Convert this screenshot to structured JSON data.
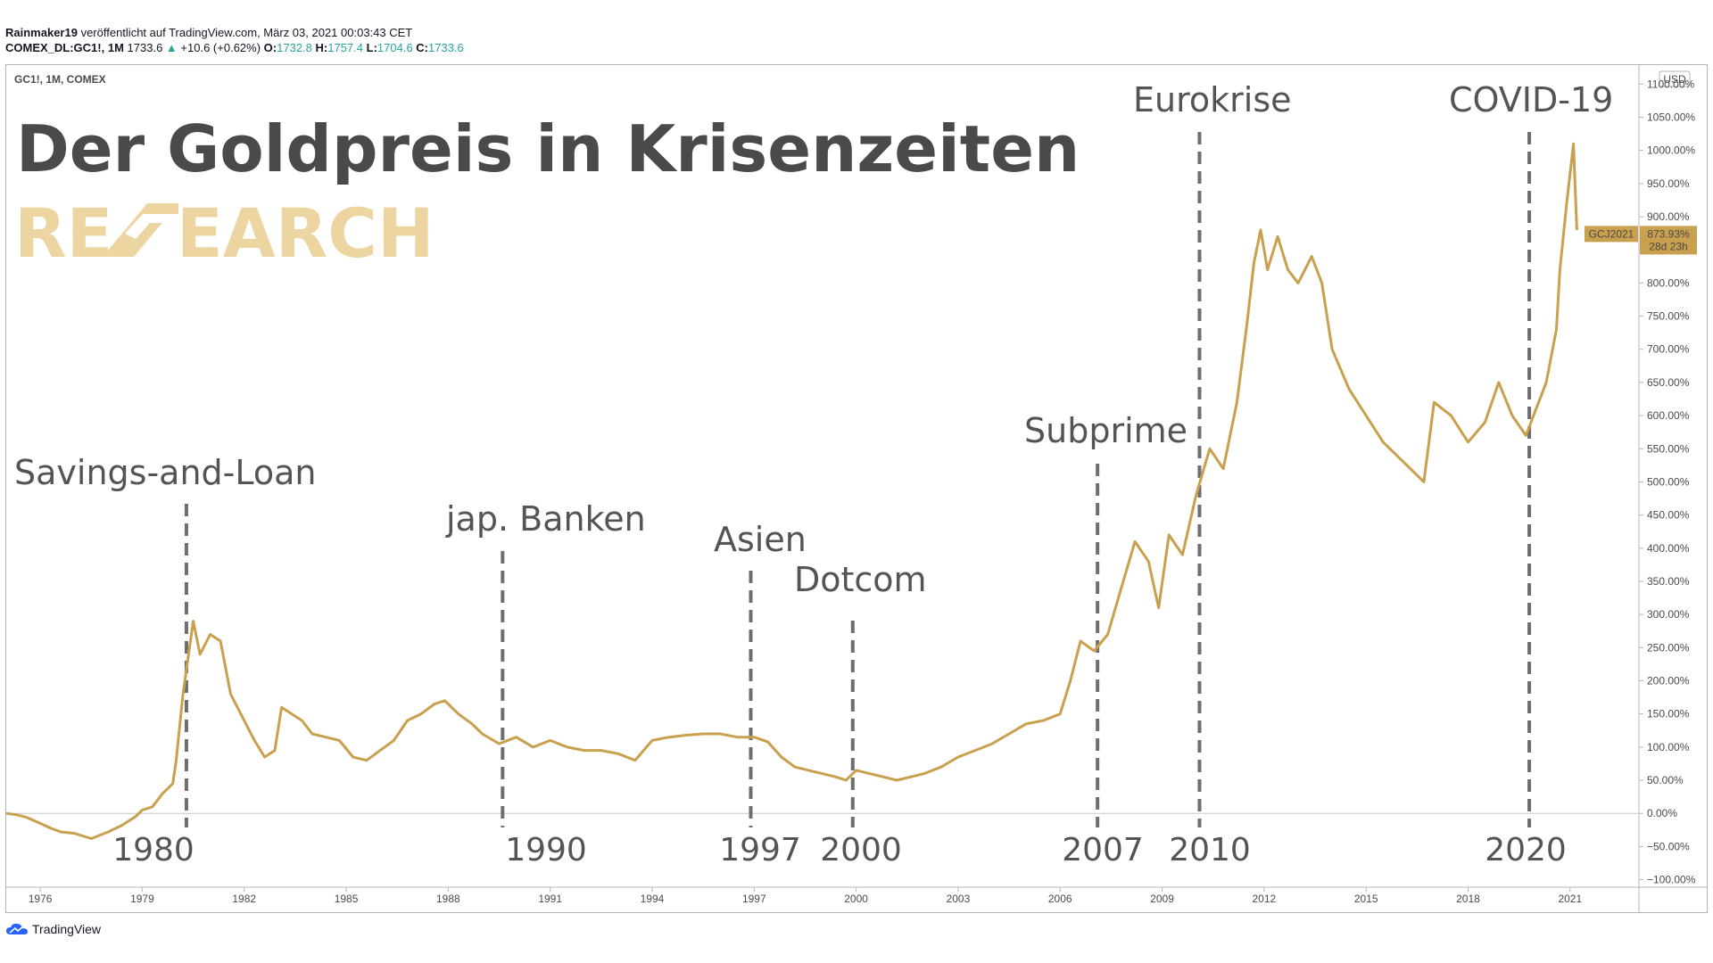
{
  "header": {
    "line1_author": "Rainmaker19",
    "line1_rest": " veröffentlicht auf TradingView.com, März 03, 2021 00:03:43 CET",
    "symbol": "COMEX_DL:GC1!, 1M",
    "last": "1733.6",
    "change": "+10.6 (+0.62%)",
    "o_label": "O:",
    "o_val": "1732.8",
    "h_label": "H:",
    "h_val": "1757.4",
    "l_label": "L:",
    "l_val": "1704.6",
    "c_label": "C:",
    "c_val": "1733.6"
  },
  "chart": {
    "pane_label": "GC1!, 1M, COMEX",
    "currency": "USD",
    "price_tag": "GCJ2021",
    "price_tag_pct": "873.93%",
    "price_tag_time": "28d 23h",
    "title": "Der Goldpreis in Krisenzeiten",
    "brand_left": "RE",
    "brand_right": "EARCH"
  },
  "chart_data": {
    "type": "line",
    "ylabel": "",
    "y_unit": "%",
    "ylim": [
      -110,
      1130
    ],
    "y_ticks": [
      -100,
      -50,
      0,
      50,
      100,
      150,
      200,
      250,
      300,
      350,
      400,
      450,
      500,
      550,
      600,
      650,
      700,
      750,
      800,
      850,
      900,
      950,
      1000,
      1050,
      1100
    ],
    "x_ticks": [
      "1976",
      "1979",
      "1982",
      "1985",
      "1988",
      "1991",
      "1994",
      "1997",
      "2000",
      "2003",
      "2006",
      "2009",
      "2012",
      "2015",
      "2018",
      "2021"
    ],
    "xlim": [
      1975.0,
      2023.0
    ],
    "color": "#c9a04d",
    "x": [
      1975.0,
      1975.3,
      1975.6,
      1976.0,
      1976.3,
      1976.6,
      1977.0,
      1977.5,
      1978.0,
      1978.4,
      1978.8,
      1979.0,
      1979.3,
      1979.6,
      1979.9,
      1980.0,
      1980.2,
      1980.5,
      1980.7,
      1981.0,
      1981.3,
      1981.6,
      1982.0,
      1982.3,
      1982.6,
      1982.9,
      1983.1,
      1983.4,
      1983.7,
      1984.0,
      1984.4,
      1984.8,
      1985.2,
      1985.6,
      1986.0,
      1986.4,
      1986.8,
      1987.2,
      1987.6,
      1987.9,
      1988.3,
      1988.7,
      1989.0,
      1989.5,
      1990.0,
      1990.5,
      1991.0,
      1991.5,
      1992.0,
      1992.5,
      1993.0,
      1993.5,
      1994.0,
      1994.5,
      1995.0,
      1995.5,
      1996.0,
      1996.5,
      1997.0,
      1997.4,
      1997.8,
      1998.2,
      1998.6,
      1999.0,
      1999.4,
      1999.7,
      2000.0,
      2000.4,
      2000.8,
      2001.2,
      2001.6,
      2002.0,
      2002.5,
      2003.0,
      2003.5,
      2004.0,
      2004.5,
      2005.0,
      2005.5,
      2006.0,
      2006.3,
      2006.6,
      2007.0,
      2007.4,
      2007.8,
      2008.2,
      2008.6,
      2008.9,
      2009.2,
      2009.6,
      2010.0,
      2010.4,
      2010.8,
      2011.2,
      2011.5,
      2011.7,
      2011.9,
      2012.1,
      2012.4,
      2012.7,
      2013.0,
      2013.4,
      2013.7,
      2014.0,
      2014.5,
      2015.0,
      2015.5,
      2015.9,
      2016.3,
      2016.7,
      2017.0,
      2017.5,
      2018.0,
      2018.5,
      2018.9,
      2019.3,
      2019.7,
      2020.0,
      2020.3,
      2020.6,
      2020.7,
      2020.9,
      2021.1,
      2021.2
    ],
    "y": [
      0,
      -2,
      -6,
      -15,
      -22,
      -28,
      -30,
      -38,
      -28,
      -18,
      -5,
      5,
      10,
      30,
      45,
      80,
      180,
      290,
      240,
      270,
      260,
      180,
      140,
      110,
      85,
      95,
      160,
      150,
      140,
      120,
      115,
      110,
      85,
      80,
      95,
      110,
      140,
      150,
      165,
      170,
      150,
      135,
      120,
      105,
      115,
      100,
      110,
      100,
      95,
      95,
      90,
      80,
      110,
      115,
      118,
      120,
      120,
      115,
      115,
      108,
      85,
      70,
      65,
      60,
      55,
      50,
      65,
      60,
      55,
      50,
      55,
      60,
      70,
      85,
      95,
      105,
      120,
      135,
      140,
      150,
      200,
      260,
      245,
      270,
      340,
      410,
      380,
      310,
      420,
      390,
      480,
      550,
      520,
      620,
      740,
      830,
      880,
      820,
      870,
      820,
      800,
      840,
      800,
      700,
      640,
      600,
      560,
      540,
      520,
      500,
      620,
      600,
      560,
      590,
      650,
      600,
      570,
      610,
      650,
      730,
      820,
      920,
      1010,
      880
    ]
  },
  "annotations": [
    {
      "label": "Savings-and-Loan",
      "year": "1980"
    },
    {
      "label": "jap. Banken",
      "year": "1990"
    },
    {
      "label": "Asien",
      "year": "1997"
    },
    {
      "label": "Dotcom",
      "year": "2000"
    },
    {
      "label": "Subprime",
      "year": "2007"
    },
    {
      "label": "Eurokrise",
      "year": "2010"
    },
    {
      "label": "COVID-19",
      "year": "2020"
    }
  ],
  "footer": {
    "brand": "TradingView"
  }
}
